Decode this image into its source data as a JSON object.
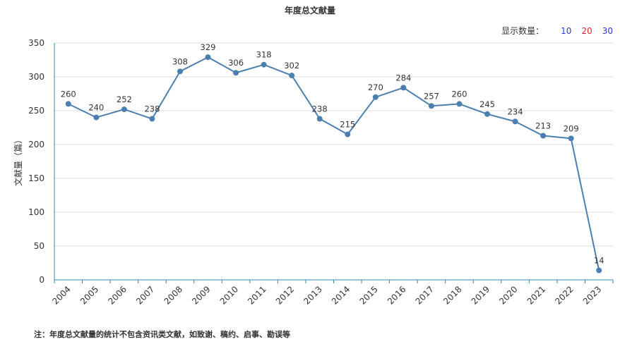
{
  "header": {
    "count_label": "显示数量：",
    "count_options": [
      "10",
      "20",
      "30"
    ]
  },
  "footnote": "注：年度总文献量的统计不包含资讯类文献，如致谢、稿约、启事、勘误等",
  "colors": {
    "line": "#4a7fb0",
    "grid": "#dcdcdc",
    "axis": "#2e8bb0"
  },
  "chart_data": {
    "type": "line",
    "title": "年度总文献量",
    "xlabel": "",
    "ylabel": "文献量（篇）",
    "ylim": [
      0,
      350
    ],
    "yticks": [
      0,
      50,
      100,
      150,
      200,
      250,
      300,
      350
    ],
    "grid": true,
    "categories": [
      "2004",
      "2005",
      "2006",
      "2007",
      "2008",
      "2009",
      "2010",
      "2011",
      "2012",
      "2013",
      "2014",
      "2015",
      "2016",
      "2017",
      "2018",
      "2019",
      "2020",
      "2021",
      "2022",
      "2023"
    ],
    "series": [
      {
        "values": [
          260,
          240,
          252,
          238,
          308,
          329,
          306,
          318,
          302,
          238,
          215,
          270,
          284,
          257,
          260,
          245,
          234,
          213,
          209,
          14
        ]
      }
    ]
  }
}
